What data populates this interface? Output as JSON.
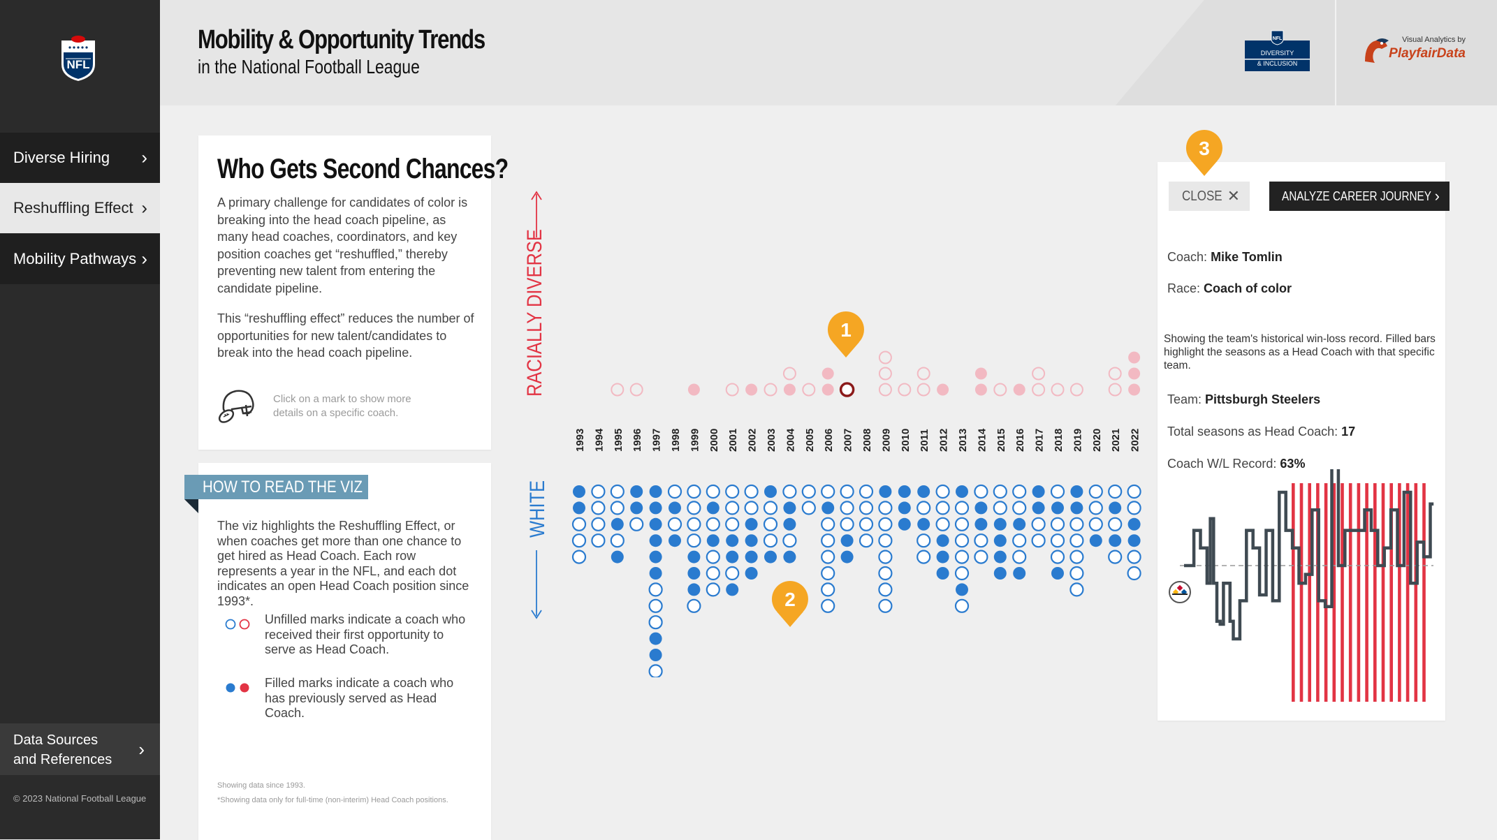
{
  "sidebar": {
    "items": [
      {
        "label": "Diverse Hiring",
        "active": false
      },
      {
        "label": "Reshuffling Effect",
        "active": true
      },
      {
        "label": "Mobility Pathways",
        "active": false
      }
    ],
    "data_sources_label": "Data Sources and References",
    "copyright": "© 2023 National Football League"
  },
  "header": {
    "title": "Mobility & Opportunity Trends",
    "subtitle": "in the National Football League",
    "di_logo_lines": [
      "DIVERSITY",
      "& INCLUSION"
    ],
    "playfair_top": "Visual Analytics by",
    "playfair_name": "PlayfairData"
  },
  "intro": {
    "title": "Who Gets Second Chances?",
    "para1": "A primary challenge for candidates of color is breaking into the head coach pipeline, as many head coaches, coordinators, and key position coaches get “reshuffled,” thereby preventing new talent from entering the candidate pipeline.",
    "para2": "This “reshuffling effect” reduces the number of opportunities for new talent/candidates to break into the head coach pipeline.",
    "hint": "Click on a mark to show more details on a specific coach."
  },
  "howto": {
    "tag": "HOW TO READ THE VIZ",
    "para": "The viz highlights the Reshuffling Effect, or when coaches get more than one chance to get hired as Head Coach. Each row represents a year in the NFL, and each dot indicates an open Head Coach position since 1993*.",
    "unfilled": "Unfilled marks indicate a coach who received their first opportunity to serve as Head Coach.",
    "filled": "Filled marks indicate a coach who has previously served as Head Coach.",
    "note1": "Showing data since 1993.",
    "note2": "*Showing data only for full-time (non-interim) Head Coach positions."
  },
  "colors": {
    "white_filled": "#2a7bcf",
    "diverse_filled": "#e23444",
    "diverse_soft": "#f2b9c2",
    "accent_orange": "#f5a623",
    "selected_ring": "#8b1a1a"
  },
  "chart_data": {
    "type": "scatter",
    "axis_up_label": "RACIALLY DIVERSE",
    "axis_down_label": "WHITE",
    "years": [
      "1993",
      "1994",
      "1995",
      "1996",
      "1997",
      "1998",
      "1999",
      "2000",
      "2001",
      "2002",
      "2003",
      "2004",
      "2005",
      "2006",
      "2007",
      "2008",
      "2009",
      "2010",
      "2011",
      "2012",
      "2013",
      "2014",
      "2015",
      "2016",
      "2017",
      "2018",
      "2019",
      "2020",
      "2021",
      "2022"
    ],
    "diverse_marks": [
      [],
      [],
      [
        "o"
      ],
      [
        "o"
      ],
      [],
      [],
      [
        "f"
      ],
      [],
      [
        "o"
      ],
      [
        "f"
      ],
      [
        "o"
      ],
      [
        "f",
        "o"
      ],
      [
        "o"
      ],
      [
        "f",
        "f"
      ],
      [
        "sel"
      ],
      [],
      [
        "o",
        "o",
        "o"
      ],
      [
        "o"
      ],
      [
        "o",
        "o"
      ],
      [
        "f"
      ],
      [],
      [
        "f",
        "f"
      ],
      [
        "o"
      ],
      [
        "f"
      ],
      [
        "o",
        "o"
      ],
      [
        "o"
      ],
      [
        "o"
      ],
      [],
      [
        "o",
        "o"
      ],
      [
        "f",
        "f",
        "f"
      ]
    ],
    "white_marks": [
      [
        "f",
        "f",
        "o",
        "o",
        "o"
      ],
      [
        "o",
        "o",
        "o",
        "o"
      ],
      [
        "o",
        "o",
        "f",
        "o",
        "f"
      ],
      [
        "f",
        "f",
        "o"
      ],
      [
        "f",
        "f",
        "f",
        "f",
        "f",
        "f",
        "o",
        "o",
        "o",
        "f",
        "f",
        "o"
      ],
      [
        "o",
        "f",
        "o",
        "f"
      ],
      [
        "o",
        "o",
        "o",
        "o",
        "f",
        "f",
        "f",
        "o"
      ],
      [
        "o",
        "f",
        "o",
        "f",
        "o",
        "o",
        "o"
      ],
      [
        "o",
        "o",
        "o",
        "f",
        "f",
        "o",
        "f"
      ],
      [
        "o",
        "o",
        "f",
        "f",
        "f",
        "f"
      ],
      [
        "f",
        "o",
        "o",
        "o",
        "f"
      ],
      [
        "o",
        "f",
        "f",
        "o",
        "f"
      ],
      [
        "o",
        "o"
      ],
      [
        "o",
        "f",
        "o",
        "o",
        "o",
        "o",
        "o",
        "o"
      ],
      [
        "o",
        "o",
        "o",
        "f",
        "f"
      ],
      [
        "o",
        "o",
        "o",
        "o"
      ],
      [
        "f",
        "o",
        "o",
        "o",
        "o",
        "o",
        "o",
        "o"
      ],
      [
        "f",
        "f",
        "f"
      ],
      [
        "f",
        "o",
        "f",
        "o",
        "o"
      ],
      [
        "o",
        "o",
        "o",
        "f",
        "f",
        "f"
      ],
      [
        "f",
        "o",
        "o",
        "o",
        "o",
        "o",
        "f",
        "o"
      ],
      [
        "o",
        "f",
        "f",
        "o",
        "o"
      ],
      [
        "o",
        "o",
        "f",
        "f",
        "f",
        "f"
      ],
      [
        "o",
        "o",
        "f",
        "o",
        "o",
        "f"
      ],
      [
        "f",
        "f",
        "o",
        "o"
      ],
      [
        "o",
        "f",
        "o",
        "o",
        "o",
        "f"
      ],
      [
        "f",
        "f",
        "o",
        "o",
        "o",
        "o",
        "o"
      ],
      [
        "o",
        "o",
        "o",
        "f"
      ],
      [
        "o",
        "f",
        "o",
        "f",
        "o"
      ],
      [
        "o",
        "o",
        "f",
        "f",
        "o",
        "o"
      ]
    ]
  },
  "badges": {
    "b1": "1",
    "b2": "2",
    "b3": "3"
  },
  "detail": {
    "close_label": "CLOSE",
    "analyze_label": "ANALYZE CAREER JOURNEY",
    "coach_label": "Coach:",
    "coach_value": "Mike Tomlin",
    "race_label": "Race:",
    "race_value": "Coach of color",
    "description": "Showing the team's historical win-loss record. Filled bars highlight the seasons as a Head Coach with that specific team.",
    "team_label": "Team:",
    "team_value": "Pittsburgh Steelers",
    "seasons_label": "Total seasons as Head Coach:",
    "seasons_value": "17",
    "record_label": "Coach W/L Record:",
    "record_value": "63%"
  },
  "winloss": {
    "team_logo": "steelers-logo",
    "values": [
      0.5,
      0.5,
      0.5,
      0.62,
      0.62,
      0.56,
      0.56,
      0.44,
      0.66,
      0.44,
      0.31,
      0.3,
      0.44,
      0.44,
      0.31,
      0.25,
      0.25,
      0.38,
      0.38,
      0.62,
      0.62,
      0.56,
      0.56,
      0.4,
      0.4,
      0.62,
      0.62,
      0.38,
      0.38,
      0.75,
      0.75,
      0.62,
      0.62,
      0.56,
      0.56,
      0.44,
      0.44,
      0.47,
      0.47,
      0.69,
      0.69,
      0.38,
      0.38,
      0.36,
      0.36,
      0.87,
      0.87,
      0.5,
      0.5,
      0.62,
      0.62,
      0.62,
      0.62,
      0.62,
      0.62,
      0.69,
      0.69,
      0.62,
      0.62,
      0.5,
      0.5,
      0.56,
      0.56,
      0.69,
      0.69,
      0.5,
      0.5,
      0.75,
      0.75,
      0.44,
      0.44,
      0.58,
      0.58,
      0.53,
      0.53,
      0.71
    ],
    "hc_values": [
      0.62,
      0.75,
      0.56,
      0.56,
      0.62,
      0.75,
      0.69,
      0.62,
      0.69,
      0.5,
      0.62,
      0.44,
      0.56,
      0.62,
      0.72,
      0.53,
      0.53
    ]
  }
}
